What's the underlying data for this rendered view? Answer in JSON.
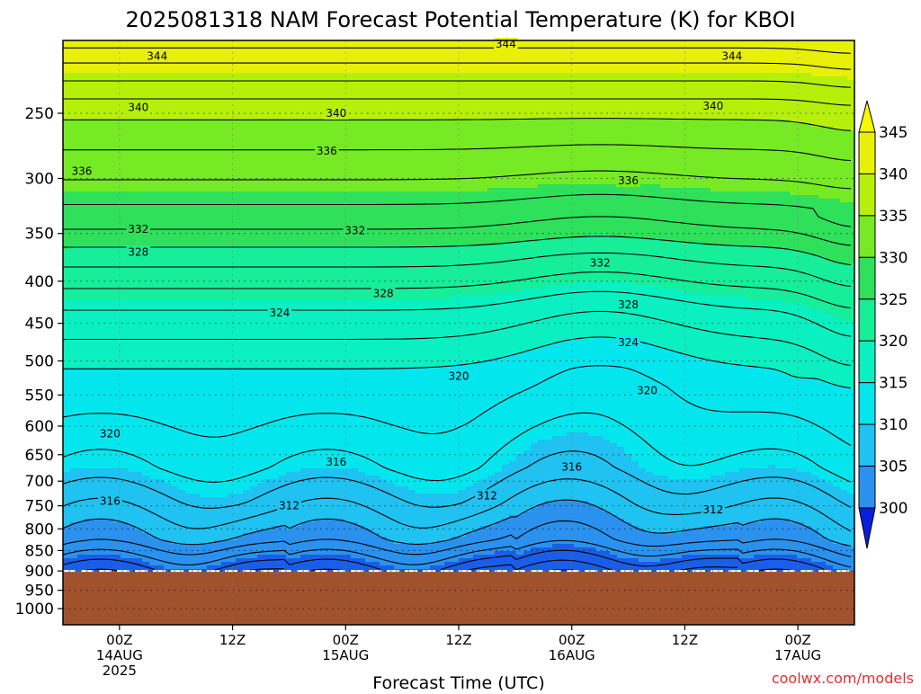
{
  "chart_data": {
    "type": "heatmap",
    "title": "2025081318 NAM Forecast Potential Temperature (K) for KBOI",
    "xlabel": "Forecast Time (UTC)",
    "ylabel": "",
    "credit": "coolwx.com/models",
    "y_scale": "log-pressure",
    "ylim": [
      1000,
      200
    ],
    "y_ticks": [
      250,
      300,
      350,
      400,
      450,
      500,
      550,
      600,
      650,
      700,
      750,
      800,
      850,
      900,
      950,
      1000
    ],
    "x_ticks": [
      {
        "hour": 6,
        "line1": "00Z",
        "line2": "14AUG",
        "line3": "2025"
      },
      {
        "hour": 18,
        "line1": "12Z",
        "line2": "",
        "line3": ""
      },
      {
        "hour": 30,
        "line1": "00Z",
        "line2": "15AUG",
        "line3": ""
      },
      {
        "hour": 42,
        "line1": "12Z",
        "line2": "",
        "line3": ""
      },
      {
        "hour": 54,
        "line1": "00Z",
        "line2": "16AUG",
        "line3": ""
      },
      {
        "hour": 66,
        "line1": "12Z",
        "line2": "",
        "line3": ""
      },
      {
        "hour": 78,
        "line1": "00Z",
        "line2": "17AUG",
        "line3": ""
      }
    ],
    "x_range_hours": [
      0,
      84
    ],
    "surface_pressure_hpa": 900,
    "grid": true,
    "colorbar": {
      "levels": [
        300,
        305,
        310,
        315,
        320,
        325,
        330,
        335,
        340,
        345
      ],
      "colors": [
        "#0a20d8",
        "#1a5ee8",
        "#2a92ee",
        "#1fc2f0",
        "#04e6ee",
        "#0af0c0",
        "#16ee9a",
        "#2ee05a",
        "#76ea24",
        "#b6f00a",
        "#e8f008",
        "#f8f800"
      ],
      "placement": "right"
    },
    "terrain_color": "#a0522d",
    "contour_labels": [
      {
        "value": "344",
        "hour": 10,
        "p": 213
      },
      {
        "value": "344",
        "hour": 47,
        "p": 206
      },
      {
        "value": "344",
        "hour": 71,
        "p": 213
      },
      {
        "value": "340",
        "hour": 8,
        "p": 246
      },
      {
        "value": "340",
        "hour": 29,
        "p": 250
      },
      {
        "value": "340",
        "hour": 69,
        "p": 245
      },
      {
        "value": "336",
        "hour": 2,
        "p": 294
      },
      {
        "value": "336",
        "hour": 28,
        "p": 278
      },
      {
        "value": "336",
        "hour": 60,
        "p": 302
      },
      {
        "value": "332",
        "hour": 8,
        "p": 346
      },
      {
        "value": "332",
        "hour": 31,
        "p": 347
      },
      {
        "value": "332",
        "hour": 57,
        "p": 380
      },
      {
        "value": "328",
        "hour": 8,
        "p": 369
      },
      {
        "value": "328",
        "hour": 34,
        "p": 414
      },
      {
        "value": "328",
        "hour": 60,
        "p": 427
      },
      {
        "value": "324",
        "hour": 23,
        "p": 437
      },
      {
        "value": "324",
        "hour": 60,
        "p": 475
      },
      {
        "value": "320",
        "hour": 42,
        "p": 522
      },
      {
        "value": "320",
        "hour": 62,
        "p": 543
      },
      {
        "value": "320",
        "hour": 5,
        "p": 613
      },
      {
        "value": "316",
        "hour": 29,
        "p": 664
      },
      {
        "value": "316",
        "hour": 54,
        "p": 673
      },
      {
        "value": "316",
        "hour": 5,
        "p": 740
      },
      {
        "value": "312",
        "hour": 24,
        "p": 750
      },
      {
        "value": "312",
        "hour": 45,
        "p": 729
      },
      {
        "value": "312",
        "hour": 69,
        "p": 758
      }
    ]
  }
}
